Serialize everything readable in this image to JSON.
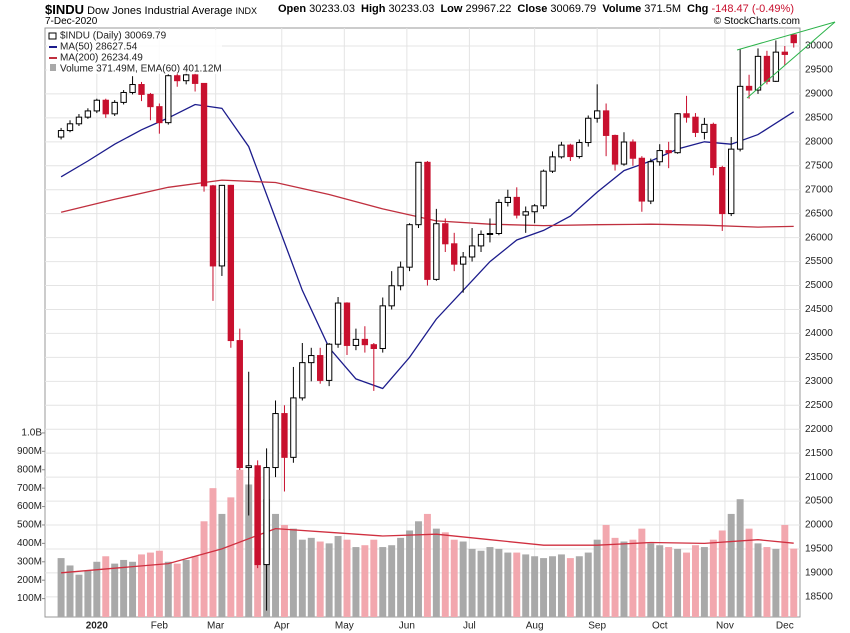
{
  "header": {
    "symbol": "$INDU",
    "name": "Dow Jones Industrial Average",
    "exchange": "INDX",
    "date": "7-Dec-2020",
    "credit": "© StockCharts.com",
    "quote": [
      {
        "label": "Open",
        "value": "30233.03"
      },
      {
        "label": "High",
        "value": "30233.03"
      },
      {
        "label": "Low",
        "value": "29967.22"
      },
      {
        "label": "Close",
        "value": "30069.79"
      },
      {
        "label": "Volume",
        "value": "371.5M"
      },
      {
        "label": "Chg",
        "value": "-148.47 (-0.49%)"
      }
    ]
  },
  "chart_data": {
    "type": "candlestick",
    "name": "$INDU (Daily) 30069.79",
    "up_color": "#000000",
    "down_color": "#c8102e",
    "grid": true,
    "open": [
      28100,
      28235,
      28376,
      28515,
      28645,
      28868,
      28584,
      28823,
      29030,
      29196,
      28990,
      28734,
      28400,
      29380,
      29276,
      29398,
      29219,
      27081,
      25409,
      27091,
      23851,
      21200,
      21237,
      19174,
      21200,
      22327,
      21413,
      22654,
      23390,
      23538,
      23019,
      23775,
      24634,
      23749,
      23876,
      23765,
      23685,
      24576,
      24995,
      25383,
      26270,
      27572,
      25128,
      26290,
      25871,
      25446,
      25596,
      25827,
      26067,
      26086,
      26734,
      26840,
      26470,
      26540,
      26664,
      27387,
      27686,
      27931,
      27692,
      27985,
      28492,
      28646,
      28133,
      27535,
      27996,
      27657,
      26763,
      27584,
      27817,
      27773,
      28586,
      28514,
      28196,
      28364,
      27464,
      26502,
      27847,
      29158,
      29080,
      29784,
      29263,
      29872,
      30233.03
    ],
    "high": [
      28290,
      28450,
      28580,
      28700,
      28900,
      28900,
      28870,
      29080,
      29370,
      29250,
      29020,
      28800,
      29410,
      29450,
      29570,
      29450,
      29220,
      27100,
      27100,
      27100,
      24100,
      23200,
      21350,
      21600,
      22600,
      22500,
      23300,
      23800,
      23700,
      23700,
      23800,
      24760,
      24650,
      24100,
      24150,
      23800,
      24750,
      25300,
      25500,
      26300,
      27580,
      27600,
      26600,
      26400,
      26100,
      25700,
      26200,
      26150,
      26400,
      26800,
      27000,
      27050,
      26650,
      26700,
      27420,
      27800,
      28000,
      27960,
      28050,
      28550,
      29200,
      28800,
      28150,
      28200,
      28050,
      27700,
      27650,
      27950,
      28000,
      28600,
      28960,
      28600,
      28500,
      28400,
      27500,
      28100,
      29930,
      29400,
      29950,
      29900,
      30116,
      30000,
      30233.03
    ],
    "low": [
      28050,
      28200,
      28330,
      28480,
      28600,
      28500,
      28540,
      28780,
      28990,
      28850,
      28450,
      28170,
      28360,
      29150,
      29200,
      29050,
      26960,
      24680,
      25200,
      23700,
      21150,
      20200,
      19100,
      18213,
      21000,
      20700,
      21300,
      22600,
      23000,
      22950,
      22900,
      23700,
      23550,
      23650,
      23600,
      22800,
      23600,
      24500,
      24900,
      25300,
      26200,
      25000,
      25100,
      25700,
      25300,
      24850,
      25500,
      25700,
      25900,
      26050,
      26650,
      26400,
      26100,
      26300,
      26600,
      27350,
      27650,
      27600,
      27650,
      27900,
      28400,
      27700,
      27400,
      27500,
      27500,
      26540,
      26700,
      27500,
      27450,
      27750,
      28400,
      28100,
      28050,
      27300,
      26140,
      26450,
      27800,
      28900,
      29000,
      29200,
      29250,
      29600,
      29967.22
    ],
    "close": [
      28235,
      28376,
      28515,
      28645,
      28868,
      28584,
      28823,
      29030,
      29196,
      28990,
      28734,
      28400,
      29380,
      29276,
      29398,
      29219,
      27081,
      25409,
      27091,
      23851,
      21200,
      21237,
      19174,
      21200,
      22327,
      21413,
      22654,
      23390,
      23538,
      23019,
      23775,
      24634,
      23749,
      23876,
      23765,
      23685,
      24576,
      24995,
      25383,
      26270,
      27572,
      25128,
      26290,
      25871,
      25446,
      25596,
      25827,
      26067,
      26086,
      26734,
      26840,
      26470,
      26540,
      26664,
      27387,
      27686,
      27931,
      27692,
      27985,
      28492,
      28646,
      28133,
      27535,
      27996,
      27657,
      26763,
      27584,
      27817,
      27773,
      28586,
      28514,
      28196,
      28364,
      27464,
      26502,
      27847,
      29158,
      29080,
      29784,
      29263,
      29872,
      29824,
      30069.79
    ],
    "xlim": [
      -1.8,
      82.7
    ],
    "xticks": [
      {
        "value": 4,
        "label": "2020"
      },
      {
        "value": 11,
        "label": "Feb"
      },
      {
        "value": 17.3,
        "label": "Mar"
      },
      {
        "value": 24.7,
        "label": "Apr"
      },
      {
        "value": 31.7,
        "label": "May"
      },
      {
        "value": 38.7,
        "label": "Jun"
      },
      {
        "value": 45.7,
        "label": "Jul"
      },
      {
        "value": 53,
        "label": "Aug"
      },
      {
        "value": 60,
        "label": "Sep"
      },
      {
        "value": 67,
        "label": "Oct"
      },
      {
        "value": 74.3,
        "label": "Nov"
      },
      {
        "value": 81,
        "label": "Dec"
      }
    ],
    "ylim": [
      18080,
      30376
    ],
    "yticks": [
      18500,
      19000,
      19500,
      20000,
      20500,
      21000,
      21500,
      22000,
      22500,
      23000,
      23500,
      24000,
      24500,
      25000,
      25500,
      26000,
      26500,
      27000,
      27500,
      28000,
      28500,
      29000,
      29500,
      30000
    ],
    "series": [
      {
        "name": "MA(50) 28627.54",
        "color": "#1c1c8c",
        "x": [
          0,
          3,
          6,
          9,
          12,
          15,
          18,
          21,
          24,
          27,
          30,
          33,
          36,
          39,
          42,
          45,
          48,
          51,
          54,
          57,
          60,
          63,
          66,
          69,
          72,
          75,
          78,
          82
        ],
        "values": [
          27270,
          27600,
          27950,
          28250,
          28500,
          28780,
          28700,
          27900,
          26400,
          24900,
          23700,
          23050,
          22850,
          23500,
          24300,
          24900,
          25500,
          25950,
          26150,
          26450,
          26950,
          27400,
          27600,
          27850,
          28000,
          27950,
          28150,
          28627.54
        ]
      },
      {
        "name": "MA(200) 26234.49",
        "color": "#c0303f",
        "x": [
          0,
          6,
          12,
          18,
          24,
          30,
          36,
          42,
          48,
          54,
          60,
          66,
          72,
          78,
          82
        ],
        "values": [
          26530,
          26800,
          27050,
          27200,
          27150,
          26900,
          26600,
          26350,
          26280,
          26250,
          26270,
          26280,
          26260,
          26220,
          26234.49
        ]
      }
    ],
    "volume": {
      "name": "Volume 371.49M, EMA(60) 401.12M",
      "up_color": "#a9a9a9",
      "down_color": "#f2a7ae",
      "ema_color": "#d03040",
      "values": [
        320,
        280,
        230,
        250,
        300,
        330,
        290,
        310,
        300,
        340,
        350,
        360,
        300,
        290,
        310,
        330,
        520,
        700,
        560,
        650,
        800,
        720,
        760,
        640,
        560,
        500,
        480,
        420,
        430,
        410,
        400,
        440,
        420,
        380,
        390,
        420,
        380,
        390,
        430,
        470,
        520,
        560,
        480,
        460,
        420,
        410,
        370,
        360,
        380,
        370,
        350,
        350,
        340,
        330,
        320,
        330,
        340,
        320,
        330,
        350,
        420,
        500,
        430,
        410,
        420,
        480,
        400,
        390,
        380,
        370,
        350,
        390,
        380,
        420,
        470,
        560,
        640,
        480,
        400,
        380,
        370,
        500,
        371.5
      ],
      "ema_x": [
        0,
        6,
        12,
        18,
        24,
        30,
        36,
        42,
        48,
        54,
        60,
        66,
        72,
        78,
        82
      ],
      "ema_values": [
        240,
        265,
        290,
        370,
        480,
        460,
        440,
        450,
        420,
        390,
        390,
        405,
        400,
        420,
        401.12
      ],
      "ylim": [
        0,
        3200
      ],
      "yticks": [
        {
          "value": 100,
          "label": "100M"
        },
        {
          "value": 200,
          "label": "200M"
        },
        {
          "value": 300,
          "label": "300M"
        },
        {
          "value": 400,
          "label": "400M"
        },
        {
          "value": 500,
          "label": "500M"
        },
        {
          "value": 600,
          "label": "600M"
        },
        {
          "value": 700,
          "label": "700M"
        },
        {
          "value": 800,
          "label": "800M"
        },
        {
          "value": 900,
          "label": "900M"
        },
        {
          "value": 1000,
          "label": "1.0B"
        }
      ]
    }
  }
}
